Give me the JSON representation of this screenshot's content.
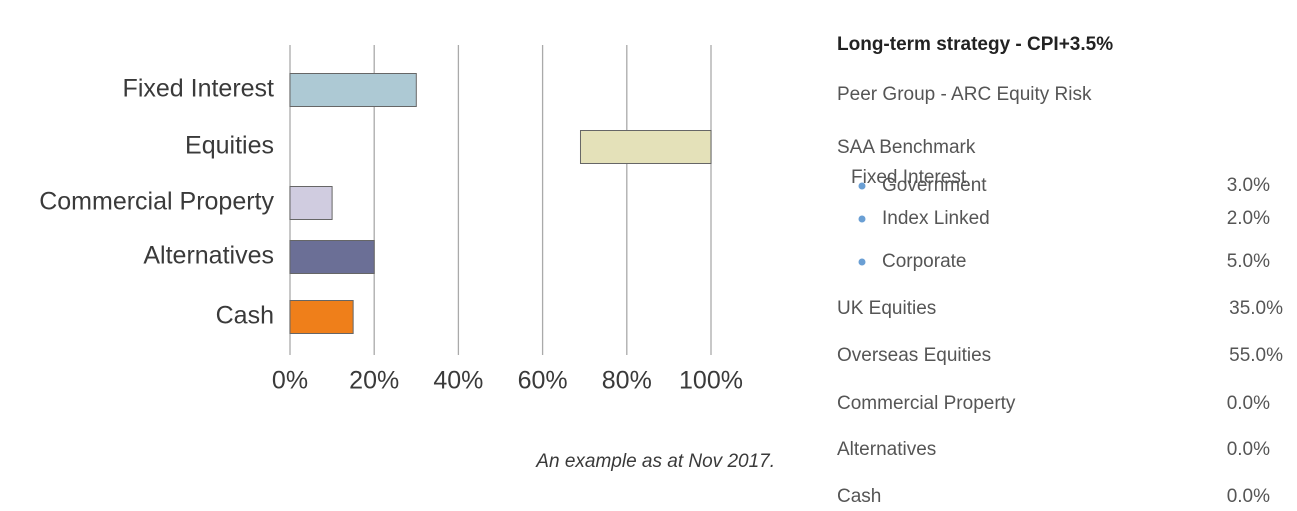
{
  "chart_data": {
    "type": "floating-bar",
    "categories": [
      "Fixed Interest",
      "Equities",
      "Commercial Property",
      "Alternatives",
      "Cash"
    ],
    "ranges": [
      [
        0,
        30
      ],
      [
        69,
        100
      ],
      [
        0,
        10
      ],
      [
        0,
        20
      ],
      [
        0,
        15
      ]
    ],
    "colors": [
      "#adc9d4",
      "#e4e1b9",
      "#d0cce0",
      "#6b6f96",
      "#ef7f1a"
    ],
    "xlim": [
      0,
      100
    ],
    "xticks": [
      {
        "value": 0,
        "label": "0%"
      },
      {
        "value": 20,
        "label": "20%"
      },
      {
        "value": 40,
        "label": "40%"
      },
      {
        "value": 60,
        "label": "60%"
      },
      {
        "value": 80,
        "label": "80%"
      },
      {
        "value": 100,
        "label": "100%"
      }
    ],
    "grid": true,
    "caption": "An example as at Nov 2017."
  },
  "panel": {
    "title": "Long-term strategy - CPI+3.5%",
    "peer_group": "Peer Group - ARC Equity Risk",
    "benchmark": "SAA Benchmark",
    "fixed_interest": {
      "label": "Fixed Interest",
      "items": [
        {
          "label": "Government",
          "value": "3.0%"
        },
        {
          "label": "Index Linked",
          "value": "2.0%"
        },
        {
          "label": "Corporate",
          "value": "5.0%"
        }
      ]
    },
    "rows": [
      {
        "label": "UK Equities",
        "value": "35.0%"
      },
      {
        "label": "Overseas Equities",
        "value": "55.0%"
      },
      {
        "label": "Commercial Property",
        "value": "0.0%"
      },
      {
        "label": "Alternatives",
        "value": "0.0%"
      },
      {
        "label": "Cash",
        "value": "0.0%"
      }
    ]
  }
}
